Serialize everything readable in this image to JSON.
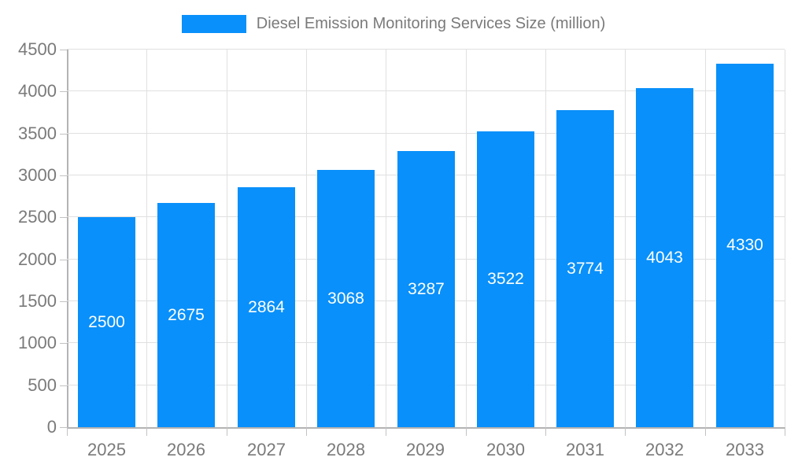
{
  "legend": {
    "label": "Diesel Emission Monitoring Services Size (million)"
  },
  "colors": {
    "bar": "#0990FA",
    "axis_line": "#B3B3B3",
    "tick": "#C2C2C2",
    "gridline": "#E0E0E0",
    "axis_text": "#7A7A7A",
    "bar_value_text": "#FFFFFF",
    "background": "#FFFFFF"
  },
  "chart_data": {
    "type": "bar",
    "title": "Diesel Emission Monitoring Services Size (million)",
    "legend_entries": [
      "Diesel Emission Monitoring Services Size (million)"
    ],
    "legend_position": "top-center",
    "categories": [
      "2025",
      "2026",
      "2027",
      "2028",
      "2029",
      "2030",
      "2031",
      "2032",
      "2033"
    ],
    "values": [
      2500,
      2675,
      2864,
      3068,
      3287,
      3522,
      3774,
      4043,
      4330
    ],
    "xlabel": "",
    "ylabel": "",
    "ylim": [
      0,
      4500
    ],
    "ytick_step": 500,
    "yticks": [
      0,
      500,
      1000,
      1500,
      2000,
      2500,
      3000,
      3500,
      4000,
      4500
    ],
    "grid": true,
    "value_labels": "inside-center"
  }
}
